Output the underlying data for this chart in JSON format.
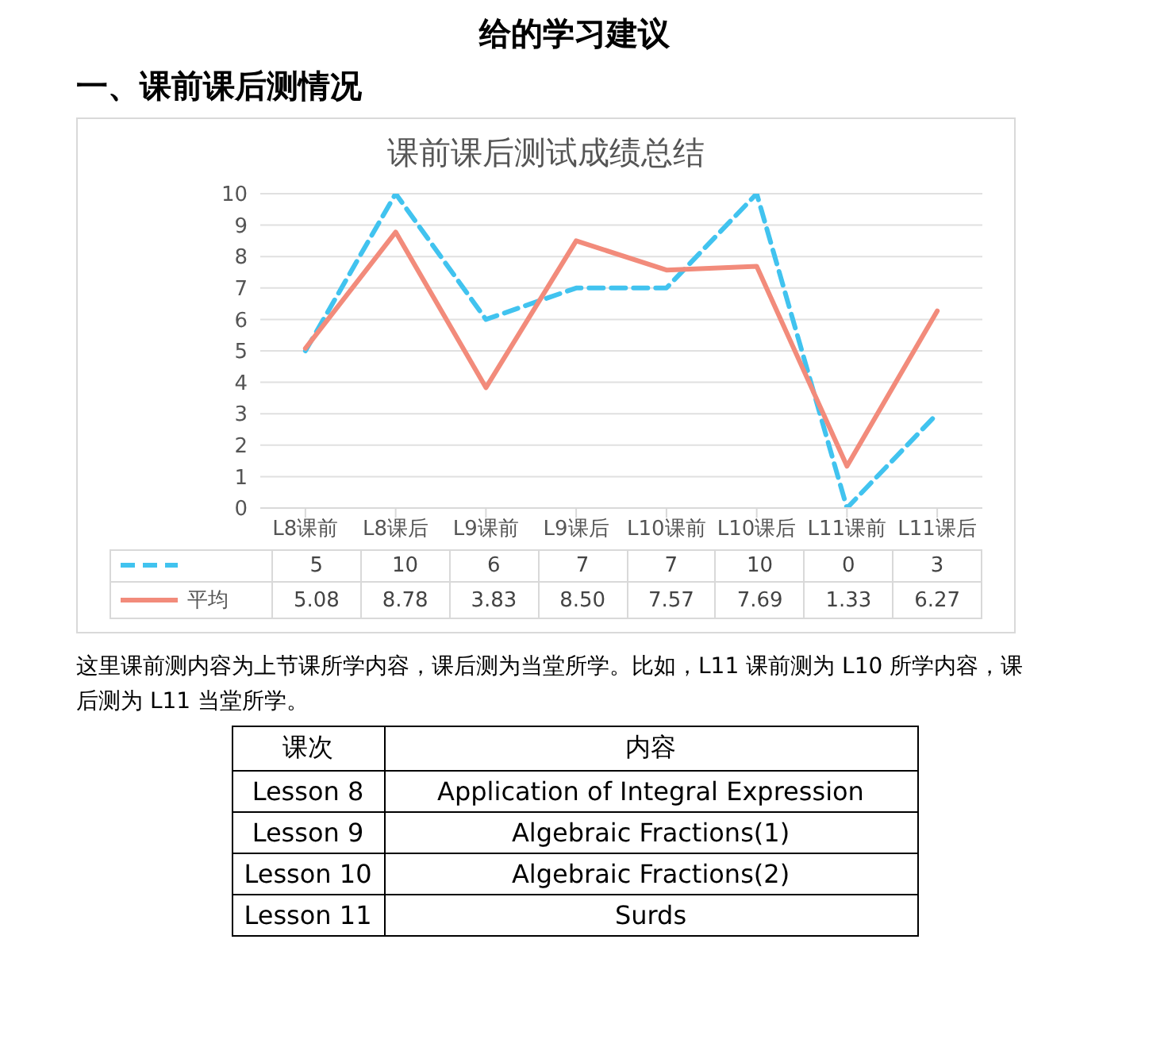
{
  "chart_data": {
    "type": "line",
    "title": "课前课后测试成绩总结",
    "categories": [
      "L8课前",
      "L8课后",
      "L9课前",
      "L9课后",
      "L10课前",
      "L10课后",
      "L11课前",
      "L11课后"
    ],
    "series": [
      {
        "color": "#41c3ef",
        "line_style": "dashed",
        "values": [
          5,
          10,
          6,
          7,
          7,
          10,
          0,
          3
        ],
        "value_labels": [
          "5",
          "10",
          "6",
          "7",
          "7",
          "10",
          "0",
          "3"
        ]
      },
      {
        "name": "平均",
        "color": "#f28b7b",
        "line_style": "solid",
        "values": [
          5.08,
          8.78,
          3.83,
          8.5,
          7.57,
          7.69,
          1.33,
          6.27
        ],
        "value_labels": [
          "5.08",
          "8.78",
          "3.83",
          "8.50",
          "7.57",
          "7.69",
          "1.33",
          "6.27"
        ]
      }
    ],
    "ylim": [
      0,
      10
    ],
    "yticks": [
      0,
      1,
      2,
      3,
      4,
      5,
      6,
      7,
      8,
      9,
      10
    ],
    "grid": "y",
    "legend": "bottom",
    "marker": "none",
    "annotations": [
      "给的学习建议",
      "一、课前课后测情况",
      "这里课前测内容为上节课所学内容，课后测为当堂所学。比如，L11 课前测为 L10 所学内容，课后测为 L11 当堂所学。",
      "课次",
      "内容",
      "Lesson 8",
      "Application of Integral Expression",
      "Lesson 9",
      "Algebraic Fractions(1)",
      "Lesson 10",
      "Algebraic Fractions(2)",
      "Lesson 11",
      "Surds"
    ]
  }
}
